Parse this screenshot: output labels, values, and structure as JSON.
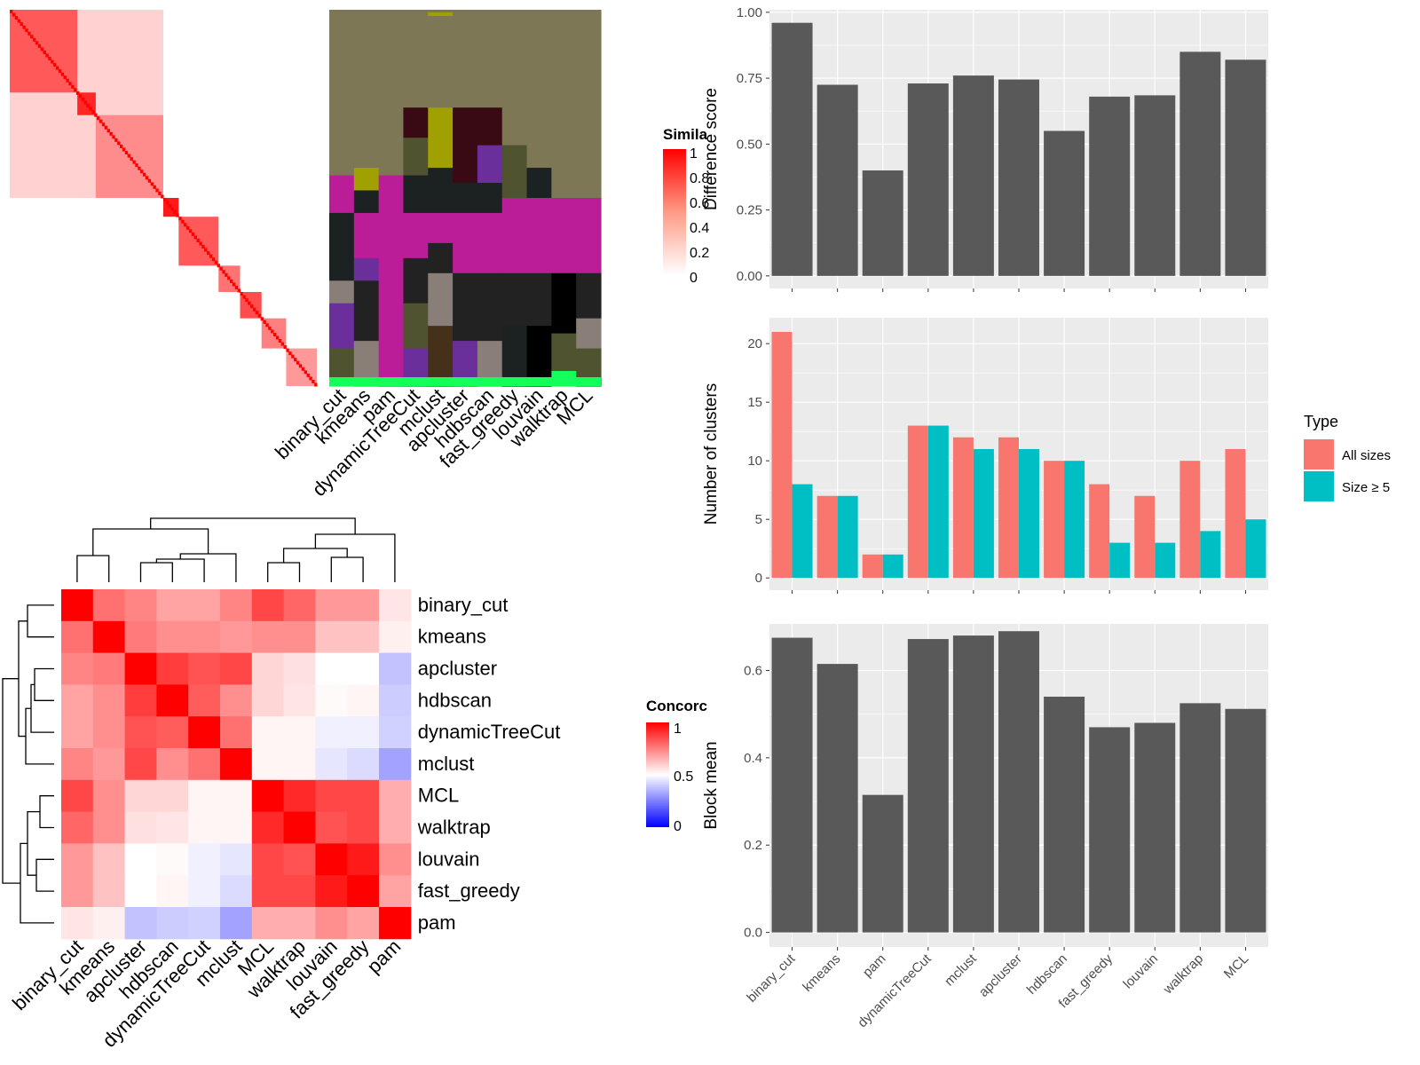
{
  "colors": {
    "panel_bg": "#ebebeb",
    "grid": "#ffffff",
    "bar_dark": "#595959",
    "all_sizes": "#f8766d",
    "size_ge5": "#00bfc4",
    "heat_red": "#ff0000",
    "heat_blue": "#0000ff",
    "axis_text": "#4d4d4d"
  },
  "similarity_legend": {
    "title": "Simila",
    "ticks": [
      "1",
      "0.8",
      "0.6",
      "0.4",
      "0.2",
      "0"
    ]
  },
  "concordance_legend": {
    "title": "Concorc",
    "ticks": [
      "1",
      "0.5",
      "0"
    ]
  },
  "cluster_heatmap": {
    "colors": [
      "#7d7756",
      "#a0a000",
      "#3a0a14",
      "#1c2221",
      "#bb1d98",
      "#6a2f9a",
      "#8a7e78",
      "#222222",
      "#14ff5a",
      "#4f5330",
      "#000000",
      "#45301a"
    ],
    "methods": [
      "binary_cut",
      "kmeans",
      "pam",
      "dynamicTreeCut",
      "mclust",
      "apcluster",
      "hdbscan",
      "fast_greedy",
      "louvain",
      "walktrap",
      "MCL"
    ]
  },
  "concordance": {
    "rows": [
      "binary_cut",
      "kmeans",
      "apcluster",
      "hdbscan",
      "dynamicTreeCut",
      "mclust",
      "MCL",
      "walktrap",
      "louvain",
      "fast_greedy",
      "pam"
    ],
    "cols": [
      "binary_cut",
      "kmeans",
      "apcluster",
      "hdbscan",
      "dynamicTreeCut",
      "mclust",
      "MCL",
      "walktrap",
      "louvain",
      "fast_greedy",
      "pam"
    ],
    "values": [
      [
        1.0,
        0.78,
        0.74,
        0.68,
        0.68,
        0.74,
        0.86,
        0.8,
        0.7,
        0.7,
        0.55
      ],
      [
        0.78,
        1.0,
        0.76,
        0.72,
        0.72,
        0.7,
        0.72,
        0.72,
        0.62,
        0.62,
        0.53
      ],
      [
        0.74,
        0.76,
        1.0,
        0.88,
        0.84,
        0.86,
        0.58,
        0.56,
        0.5,
        0.5,
        0.38
      ],
      [
        0.68,
        0.72,
        0.88,
        1.0,
        0.82,
        0.72,
        0.58,
        0.55,
        0.51,
        0.52,
        0.4
      ],
      [
        0.68,
        0.72,
        0.84,
        0.82,
        1.0,
        0.78,
        0.52,
        0.52,
        0.47,
        0.47,
        0.41
      ],
      [
        0.74,
        0.7,
        0.86,
        0.72,
        0.78,
        1.0,
        0.52,
        0.52,
        0.45,
        0.43,
        0.32
      ],
      [
        0.86,
        0.72,
        0.58,
        0.58,
        0.52,
        0.52,
        1.0,
        0.92,
        0.86,
        0.86,
        0.66
      ],
      [
        0.8,
        0.72,
        0.56,
        0.55,
        0.52,
        0.52,
        0.92,
        1.0,
        0.84,
        0.86,
        0.66
      ],
      [
        0.7,
        0.62,
        0.5,
        0.51,
        0.47,
        0.45,
        0.86,
        0.84,
        1.0,
        0.95,
        0.72
      ],
      [
        0.7,
        0.62,
        0.5,
        0.52,
        0.47,
        0.43,
        0.86,
        0.86,
        0.95,
        1.0,
        0.68
      ],
      [
        0.55,
        0.53,
        0.38,
        0.4,
        0.41,
        0.32,
        0.66,
        0.66,
        0.72,
        0.68,
        1.0
      ]
    ]
  },
  "chart_data": [
    {
      "type": "bar",
      "categories": [
        "binary_cut",
        "kmeans",
        "pam",
        "dynamicTreeCut",
        "mclust",
        "apcluster",
        "hdbscan",
        "fast_greedy",
        "louvain",
        "walktrap",
        "MCL"
      ],
      "values": [
        0.96,
        0.725,
        0.4,
        0.73,
        0.76,
        0.745,
        0.55,
        0.68,
        0.685,
        0.85,
        0.82
      ],
      "ylabel": "Difference score",
      "ylim": [
        0,
        1.0
      ],
      "yticks": [
        "0.00",
        "0.25",
        "0.50",
        "0.75",
        "1.00"
      ],
      "grid": true
    },
    {
      "type": "bar",
      "categories": [
        "binary_cut",
        "kmeans",
        "pam",
        "dynamicTreeCut",
        "mclust",
        "apcluster",
        "hdbscan",
        "fast_greedy",
        "louvain",
        "walktrap",
        "MCL"
      ],
      "series": [
        {
          "name": "All sizes",
          "values": [
            21,
            7,
            2,
            13,
            12,
            12,
            10,
            8,
            7,
            10,
            11
          ]
        },
        {
          "name": "Size ≥ 5",
          "values": [
            8,
            7,
            2,
            13,
            11,
            11,
            10,
            3,
            3,
            4,
            5
          ]
        }
      ],
      "ylabel": "Number of clusters",
      "ylim": [
        0,
        22
      ],
      "yticks": [
        "0",
        "5",
        "10",
        "15",
        "20"
      ],
      "legend_title": "Type",
      "legend_position": "right",
      "grid": true
    },
    {
      "type": "bar",
      "categories": [
        "binary_cut",
        "kmeans",
        "pam",
        "dynamicTreeCut",
        "mclust",
        "apcluster",
        "hdbscan",
        "fast_greedy",
        "louvain",
        "walktrap",
        "MCL"
      ],
      "values": [
        0.675,
        0.615,
        0.315,
        0.672,
        0.68,
        0.69,
        0.54,
        0.47,
        0.48,
        0.525,
        0.512
      ],
      "ylabel": "Block mean",
      "ylim": [
        0,
        0.7
      ],
      "yticks": [
        "0.0",
        "0.2",
        "0.4",
        "0.6"
      ],
      "grid": true
    }
  ]
}
